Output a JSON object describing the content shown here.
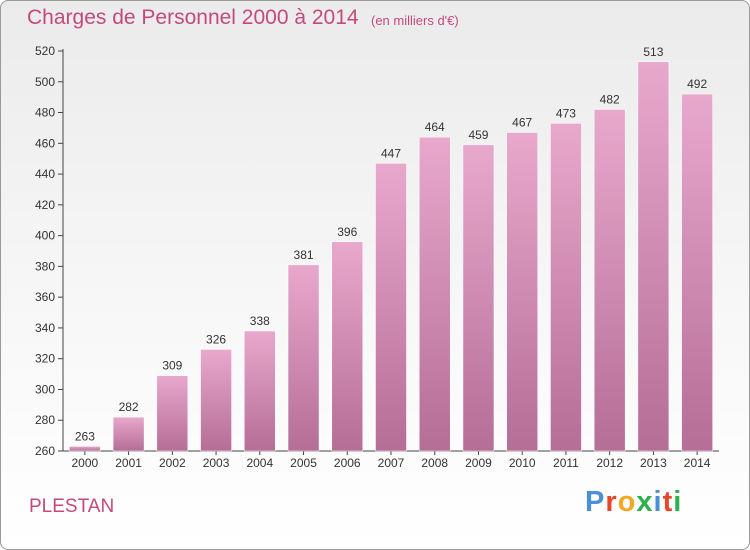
{
  "header": {
    "title": "Charges de Personnel 2000 à 2014",
    "subtitle": "(en milliers d'€)"
  },
  "footer": {
    "city": "PLESTAN",
    "logo_text": "Proxiti",
    "logo_letters": [
      {
        "ch": "P",
        "color": "#4a8fd8"
      },
      {
        "ch": "r",
        "color": "#e8452a"
      },
      {
        "ch": "o",
        "color": "#f5a623"
      },
      {
        "ch": "x",
        "color": "#2bb24c"
      },
      {
        "ch": "i",
        "color": "#4a8fd8"
      },
      {
        "ch": "t",
        "color": "#e8452a"
      },
      {
        "ch": "i",
        "color": "#2bb24c"
      }
    ]
  },
  "colors": {
    "accent": "#c44a7e",
    "bar_top": "#e8a8cc",
    "bar_bottom": "#b56e96"
  },
  "chart_data": {
    "type": "bar",
    "title": "Charges de Personnel 2000 à 2014",
    "subtitle": "(en milliers d'€)",
    "xlabel": "",
    "ylabel": "",
    "categories": [
      "2000",
      "2001",
      "2002",
      "2003",
      "2004",
      "2005",
      "2006",
      "2007",
      "2008",
      "2009",
      "2010",
      "2011",
      "2012",
      "2013",
      "2014"
    ],
    "values": [
      263,
      282,
      309,
      326,
      338,
      381,
      396,
      447,
      464,
      459,
      467,
      473,
      482,
      513,
      492
    ],
    "ylim": [
      260,
      520
    ],
    "yticks": [
      260,
      280,
      300,
      320,
      340,
      360,
      380,
      400,
      420,
      440,
      460,
      480,
      500,
      520
    ],
    "grid": false,
    "data_labels": true
  }
}
